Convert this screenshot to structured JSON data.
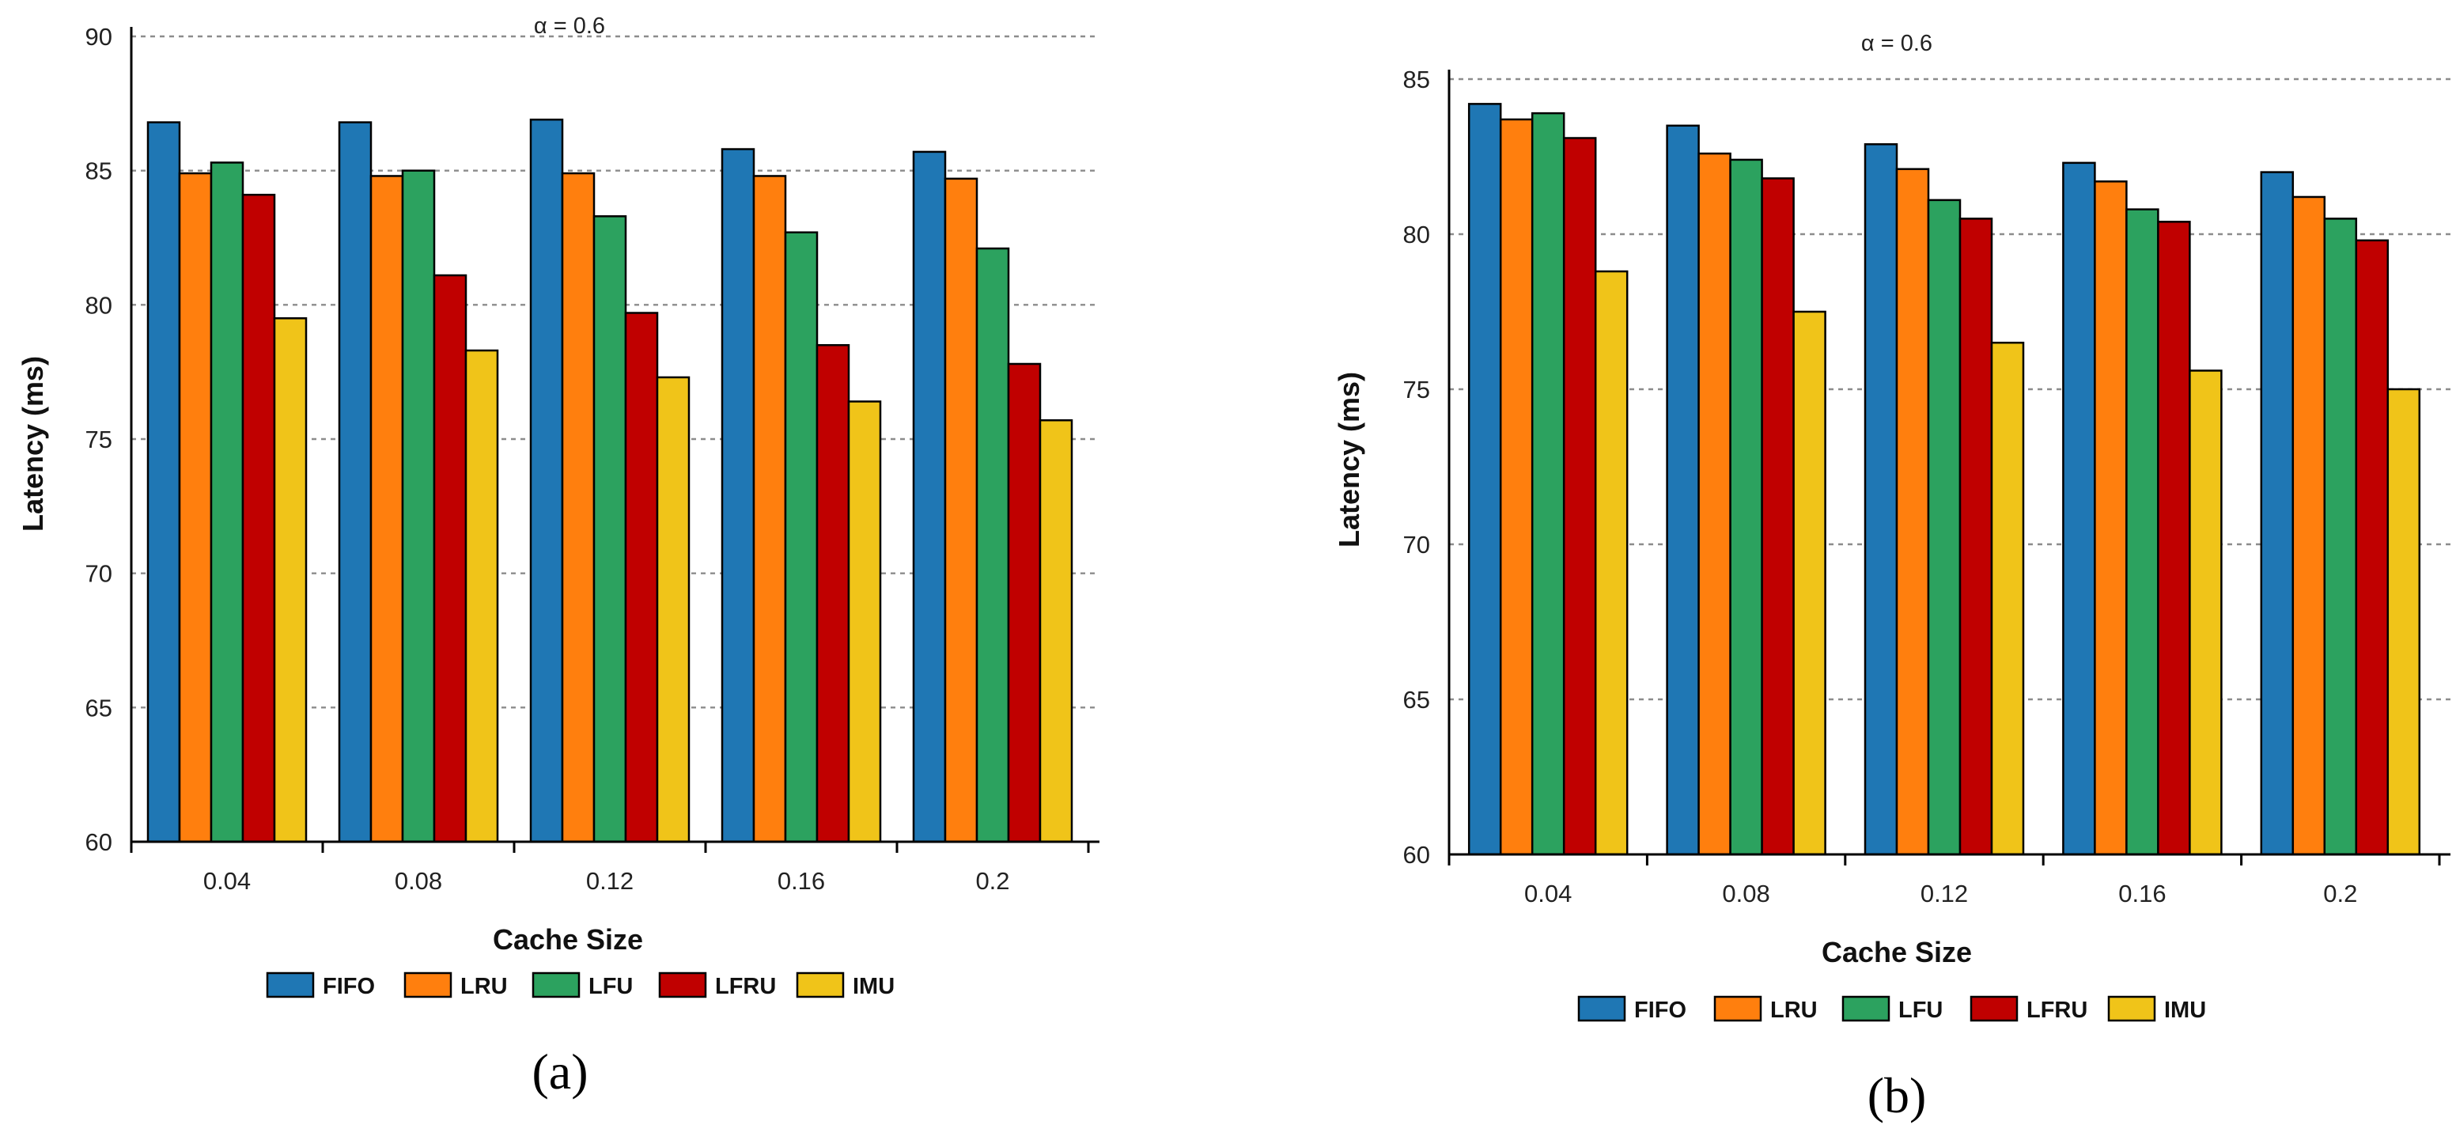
{
  "chart_data": [
    {
      "type": "bar",
      "panel_label": "(a)",
      "title": "α = 0.6",
      "xlabel": "Cache Size",
      "ylabel": "Latency (ms)",
      "ylim": [
        60,
        90
      ],
      "yticks": [
        60,
        65,
        70,
        75,
        80,
        85,
        90
      ],
      "grid": true,
      "legend_position": "bottom",
      "categories": [
        "0.04",
        "0.08",
        "0.12",
        "0.16",
        "0.2"
      ],
      "series": [
        {
          "name": "FIFO",
          "color": "#1f77b4",
          "values": [
            86.8,
            86.8,
            86.9,
            85.8,
            85.7
          ]
        },
        {
          "name": "LRU",
          "color": "#ff7f0e",
          "values": [
            84.9,
            84.8,
            84.9,
            84.8,
            84.7
          ]
        },
        {
          "name": "LFU",
          "color": "#2ca25f",
          "values": [
            85.3,
            85.0,
            83.3,
            82.7,
            82.1
          ]
        },
        {
          "name": "LFRU",
          "color": "#c00000",
          "values": [
            84.1,
            81.1,
            79.7,
            78.5,
            77.8
          ]
        },
        {
          "name": "IMU",
          "color": "#f0c419",
          "values": [
            79.5,
            78.3,
            77.3,
            76.4,
            75.7
          ]
        }
      ]
    },
    {
      "type": "bar",
      "panel_label": "(b)",
      "title": "α = 0.6",
      "xlabel": "Cache Size",
      "ylabel": "Latency (ms)",
      "ylim": [
        60,
        85
      ],
      "yticks": [
        60,
        65,
        70,
        75,
        80,
        85
      ],
      "grid": true,
      "legend_position": "bottom",
      "categories": [
        "0.04",
        "0.08",
        "0.12",
        "0.16",
        "0.2"
      ],
      "series": [
        {
          "name": "FIFO",
          "color": "#1f77b4",
          "values": [
            84.2,
            83.5,
            82.9,
            82.3,
            82.0
          ]
        },
        {
          "name": "LRU",
          "color": "#ff7f0e",
          "values": [
            83.7,
            82.6,
            82.1,
            81.7,
            81.2
          ]
        },
        {
          "name": "LFU",
          "color": "#2ca25f",
          "values": [
            83.9,
            82.4,
            81.1,
            80.8,
            80.5
          ]
        },
        {
          "name": "LFRU",
          "color": "#c00000",
          "values": [
            83.1,
            81.8,
            80.5,
            80.4,
            79.8
          ]
        },
        {
          "name": "IMU",
          "color": "#f0c419",
          "values": [
            78.8,
            77.5,
            76.5,
            75.6,
            75.0
          ]
        }
      ]
    }
  ]
}
